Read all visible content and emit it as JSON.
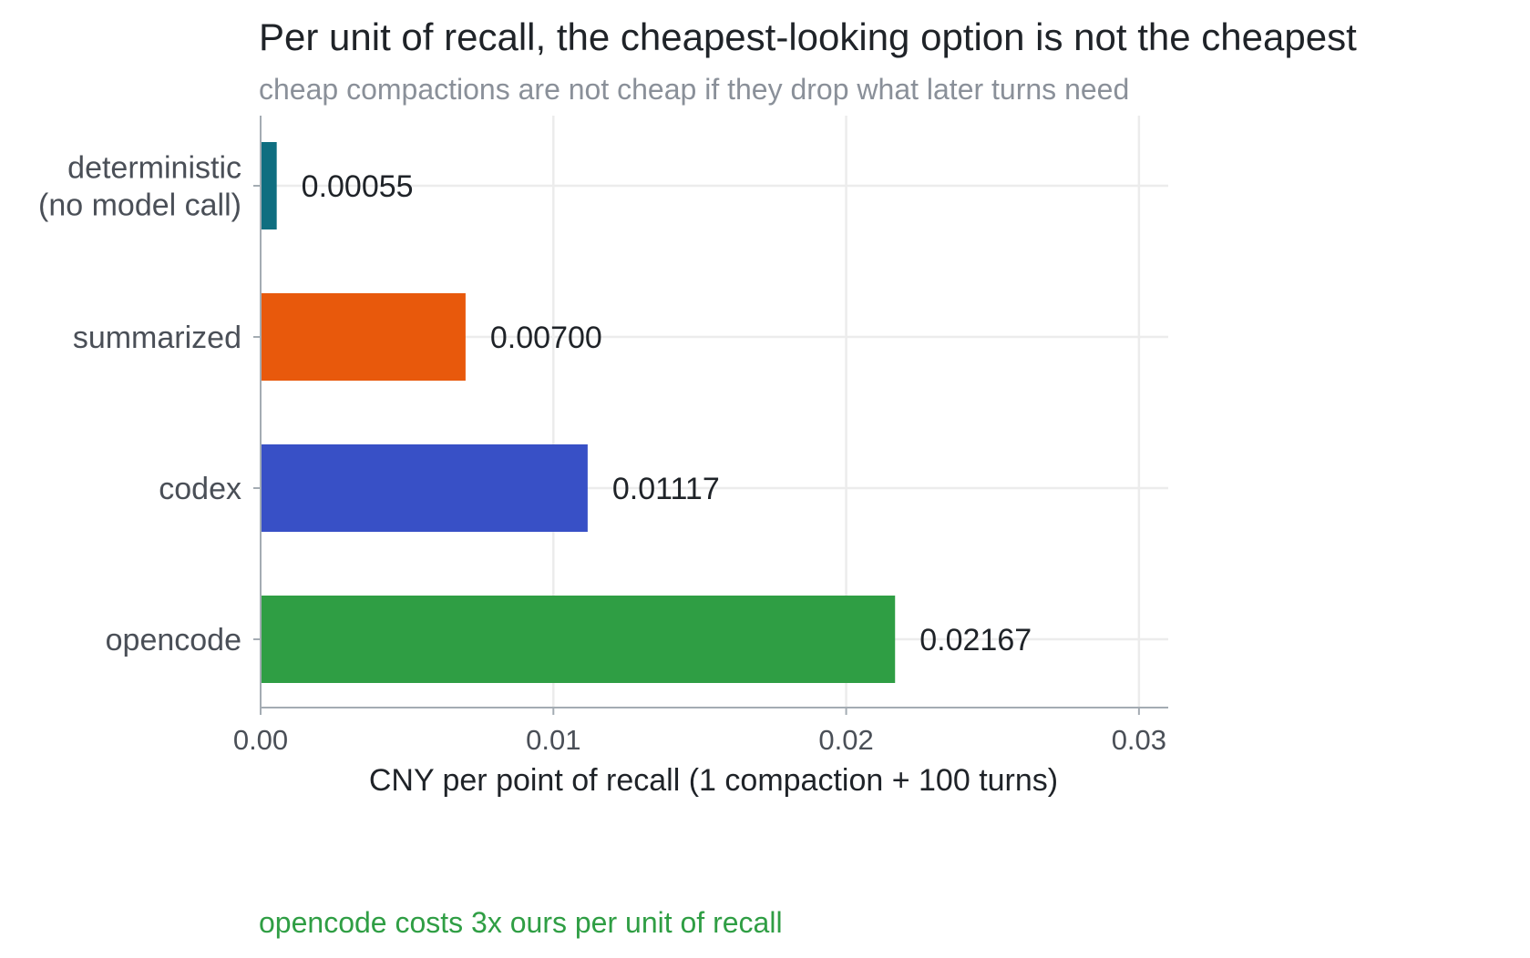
{
  "chart_data": {
    "type": "bar",
    "orientation": "horizontal",
    "title": "Per unit of recall, the cheapest-looking option is not the cheapest",
    "subtitle": "cheap compactions are not cheap if they drop what later turns need",
    "categories": [
      [
        "deterministic",
        "(no model call)"
      ],
      [
        "summarized"
      ],
      [
        "codex"
      ],
      [
        "opencode"
      ]
    ],
    "values": [
      0.00055,
      0.007,
      0.01117,
      0.02167
    ],
    "value_labels": [
      "0.00055",
      "0.00700",
      "0.01117",
      "0.02167"
    ],
    "colors": [
      "#0f6e80",
      "#e8590c",
      "#3850c6",
      "#2f9e44"
    ],
    "xlabel": "CNY per point of recall (1 compaction + 100 turns)",
    "ylabel": "",
    "xlim": [
      0,
      0.031
    ],
    "xticks": [
      0.0,
      0.01,
      0.02,
      0.03
    ],
    "xtick_labels": [
      "0.00",
      "0.01",
      "0.02",
      "0.03"
    ],
    "grid": true,
    "annotation": {
      "text": "opencode costs 3x ours per unit of recall",
      "color": "#2f9e44"
    }
  }
}
